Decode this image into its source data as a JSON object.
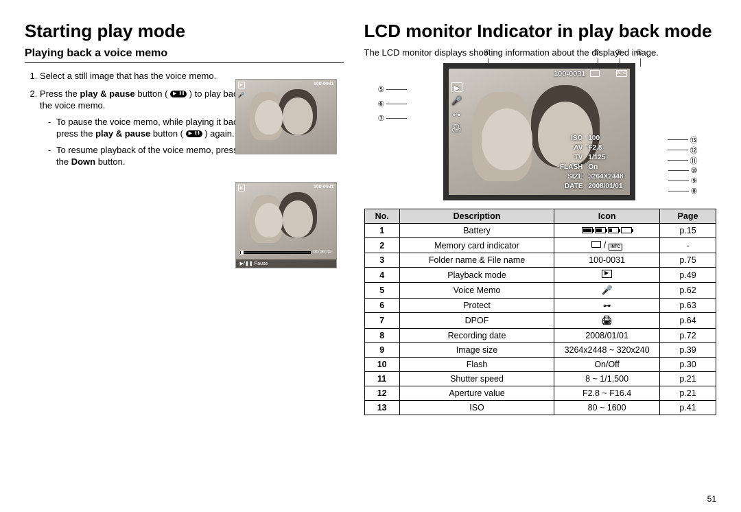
{
  "page_number": "51",
  "left": {
    "heading": "Starting play mode",
    "subheading": "Playing back a voice memo",
    "step1": "Select a still image that has the voice memo.",
    "step2_a": "Press the ",
    "step2_bold": "play & pause",
    "step2_b": " button ( ",
    "step2_c": " ) to play back the voice memo.",
    "bullet1_a": "To pause the voice memo, while playing it back, press the ",
    "bullet1_bold": "play & pause",
    "bullet1_b": " button ( ",
    "bullet1_c": " ) again.",
    "bullet2_a": "To resume playback of the voice memo, press the ",
    "bullet2_bold": "Down",
    "bullet2_b": " button.",
    "thumb_file": "100-0031",
    "thumb_time": "00:00:02",
    "thumb_pause": "▶/❚❚ Pause"
  },
  "right": {
    "heading": "LCD monitor Indicator in play back mode",
    "intro": "The LCD monitor displays shooting information about the displayed image.",
    "lcd": {
      "file": "100-0031",
      "rows": [
        {
          "k": "ISO",
          "v": "100"
        },
        {
          "k": "AV",
          "v": "F2.8"
        },
        {
          "k": "TV",
          "v": "1/125"
        },
        {
          "k": "FLASH",
          "v": "On"
        },
        {
          "k": "SIZE",
          "v": "3264X2448"
        },
        {
          "k": "DATE",
          "v": "2008/01/01"
        }
      ]
    },
    "callouts_top": [
      "④",
      "③",
      "②",
      "①"
    ],
    "callouts_left": [
      "⑤",
      "⑥",
      "⑦"
    ],
    "callouts_right": [
      "⑬",
      "⑫",
      "⑪",
      "⑩",
      "⑨",
      "⑧"
    ],
    "table": {
      "columns": [
        "No.",
        "Description",
        "Icon",
        "Page"
      ],
      "col_widths": [
        "10%",
        "44%",
        "30%",
        "16%"
      ],
      "rows": [
        {
          "no": "1",
          "desc": "Battery",
          "icon_type": "battery",
          "page": "p.15"
        },
        {
          "no": "2",
          "desc": "Memory card indicator",
          "icon_type": "card",
          "page": "-"
        },
        {
          "no": "3",
          "desc": "Folder name & File name",
          "icon_text": "100-0031",
          "page": "p.75"
        },
        {
          "no": "4",
          "desc": "Playback mode",
          "icon_type": "play",
          "page": "p.49"
        },
        {
          "no": "5",
          "desc": "Voice Memo",
          "icon_type": "mic",
          "page": "p.62"
        },
        {
          "no": "6",
          "desc": "Protect",
          "icon_type": "key",
          "page": "p.63"
        },
        {
          "no": "7",
          "desc": "DPOF",
          "icon_type": "dpof",
          "page": "p.64"
        },
        {
          "no": "8",
          "desc": "Recording date",
          "icon_text": "2008/01/01",
          "page": "p.72"
        },
        {
          "no": "9",
          "desc": "Image size",
          "icon_text": "3264x2448 ~ 320x240",
          "page": "p.39"
        },
        {
          "no": "10",
          "desc": "Flash",
          "icon_text": "On/Off",
          "page": "p.30"
        },
        {
          "no": "11",
          "desc": "Shutter speed",
          "icon_text": "8 ~ 1/1,500",
          "page": "p.21"
        },
        {
          "no": "12",
          "desc": "Aperture value",
          "icon_text": "F2.8 ~ F16.4",
          "page": "p.21"
        },
        {
          "no": "13",
          "desc": "ISO",
          "icon_text": "80 ~ 1600",
          "page": "p.41"
        }
      ]
    }
  }
}
